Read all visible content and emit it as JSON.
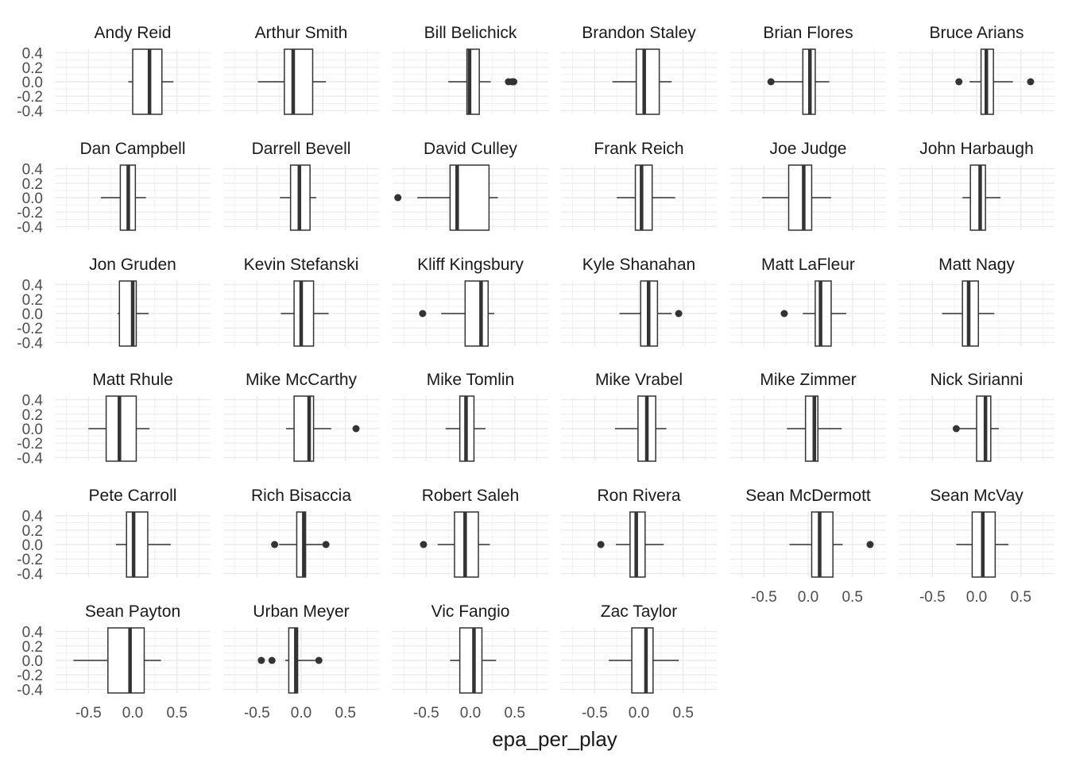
{
  "chart_data": {
    "type": "boxplot-facets",
    "xlabel": "epa_per_play",
    "ylabel": "",
    "xlim": [
      -0.88,
      0.88
    ],
    "ylim": [
      -0.45,
      0.45
    ],
    "x_ticks": [
      -0.5,
      0.0,
      0.5
    ],
    "x_tick_labels": [
      "-0.5",
      "0.0",
      "0.5"
    ],
    "y_ticks": [
      0.4,
      0.2,
      0.0,
      -0.2,
      -0.4
    ],
    "y_tick_labels": [
      "0.4",
      "0.2",
      "0.0",
      "-0.2",
      "-0.4"
    ],
    "columns": 6,
    "grid": true,
    "panels": [
      {
        "coach": "Andy Reid",
        "whisker_low": -0.05,
        "q1": 0.0,
        "median": 0.19,
        "q3": 0.33,
        "whisker_high": 0.46,
        "outliers": []
      },
      {
        "coach": "Arthur Smith",
        "whisker_low": -0.49,
        "q1": -0.19,
        "median": -0.09,
        "q3": 0.13,
        "whisker_high": 0.28,
        "outliers": []
      },
      {
        "coach": "Bill Belichick",
        "whisker_low": -0.25,
        "q1": -0.04,
        "median": -0.01,
        "q3": 0.1,
        "whisker_high": 0.23,
        "outliers": [
          0.43,
          0.47,
          0.49
        ]
      },
      {
        "coach": "Brandon Staley",
        "whisker_low": -0.3,
        "q1": -0.03,
        "median": 0.06,
        "q3": 0.23,
        "whisker_high": 0.37,
        "outliers": []
      },
      {
        "coach": "Brian Flores",
        "whisker_low": -0.39,
        "q1": -0.06,
        "median": 0.02,
        "q3": 0.08,
        "whisker_high": 0.24,
        "outliers": [
          -0.42
        ]
      },
      {
        "coach": "Bruce Arians",
        "whisker_low": -0.08,
        "q1": 0.05,
        "median": 0.11,
        "q3": 0.19,
        "whisker_high": 0.41,
        "outliers": [
          -0.2,
          0.61
        ]
      },
      {
        "coach": "Dan Campbell",
        "whisker_low": -0.36,
        "q1": -0.14,
        "median": -0.05,
        "q3": 0.03,
        "whisker_high": 0.15,
        "outliers": []
      },
      {
        "coach": "Darrell Bevell",
        "whisker_low": -0.24,
        "q1": -0.12,
        "median": -0.02,
        "q3": 0.1,
        "whisker_high": 0.17,
        "outliers": []
      },
      {
        "coach": "David Culley",
        "whisker_low": -0.6,
        "q1": -0.23,
        "median": -0.15,
        "q3": 0.21,
        "whisker_high": 0.31,
        "outliers": [
          -0.82
        ]
      },
      {
        "coach": "Frank Reich",
        "whisker_low": -0.25,
        "q1": -0.04,
        "median": 0.03,
        "q3": 0.15,
        "whisker_high": 0.41,
        "outliers": []
      },
      {
        "coach": "Joe Judge",
        "whisker_low": -0.52,
        "q1": -0.22,
        "median": -0.05,
        "q3": 0.04,
        "whisker_high": 0.26,
        "outliers": []
      },
      {
        "coach": "John Harbaugh",
        "whisker_low": -0.16,
        "q1": -0.07,
        "median": 0.04,
        "q3": 0.1,
        "whisker_high": 0.27,
        "outliers": []
      },
      {
        "coach": "Jon Gruden",
        "whisker_low": -0.17,
        "q1": -0.15,
        "median": 0.0,
        "q3": 0.04,
        "whisker_high": 0.18,
        "outliers": []
      },
      {
        "coach": "Kevin Stefanski",
        "whisker_low": -0.23,
        "q1": -0.08,
        "median": 0.0,
        "q3": 0.14,
        "whisker_high": 0.31,
        "outliers": []
      },
      {
        "coach": "Kliff Kingsbury",
        "whisker_low": -0.33,
        "q1": -0.06,
        "median": 0.12,
        "q3": 0.2,
        "whisker_high": 0.27,
        "outliers": [
          -0.54
        ]
      },
      {
        "coach": "Kyle Shanahan",
        "whisker_low": -0.22,
        "q1": 0.02,
        "median": 0.11,
        "q3": 0.21,
        "whisker_high": 0.37,
        "outliers": [
          0.45
        ]
      },
      {
        "coach": "Matt LaFleur",
        "whisker_low": -0.06,
        "q1": 0.08,
        "median": 0.14,
        "q3": 0.26,
        "whisker_high": 0.43,
        "outliers": [
          -0.27
        ]
      },
      {
        "coach": "Matt Nagy",
        "whisker_low": -0.39,
        "q1": -0.16,
        "median": -0.09,
        "q3": 0.02,
        "whisker_high": 0.2,
        "outliers": []
      },
      {
        "coach": "Matt Rhule",
        "whisker_low": -0.5,
        "q1": -0.3,
        "median": -0.15,
        "q3": 0.04,
        "whisker_high": 0.19,
        "outliers": []
      },
      {
        "coach": "Mike McCarthy",
        "whisker_low": -0.17,
        "q1": -0.08,
        "median": 0.09,
        "q3": 0.14,
        "whisker_high": 0.34,
        "outliers": [
          0.62
        ]
      },
      {
        "coach": "Mike Tomlin",
        "whisker_low": -0.28,
        "q1": -0.12,
        "median": -0.05,
        "q3": 0.04,
        "whisker_high": 0.17,
        "outliers": []
      },
      {
        "coach": "Mike Vrabel",
        "whisker_low": -0.27,
        "q1": -0.01,
        "median": 0.09,
        "q3": 0.19,
        "whisker_high": 0.31,
        "outliers": []
      },
      {
        "coach": "Mike Zimmer",
        "whisker_low": -0.24,
        "q1": -0.03,
        "median": 0.07,
        "q3": 0.11,
        "whisker_high": 0.38,
        "outliers": []
      },
      {
        "coach": "Nick Sirianni",
        "whisker_low": -0.23,
        "q1": 0.0,
        "median": 0.1,
        "q3": 0.16,
        "whisker_high": 0.25,
        "outliers": [
          -0.23
        ]
      },
      {
        "coach": "Pete Carroll",
        "whisker_low": -0.19,
        "q1": -0.07,
        "median": 0.01,
        "q3": 0.17,
        "whisker_high": 0.43,
        "outliers": []
      },
      {
        "coach": "Rich Bisaccia",
        "whisker_low": -0.25,
        "q1": -0.05,
        "median": 0.03,
        "q3": 0.05,
        "whisker_high": 0.28,
        "outliers": [
          -0.3,
          0.28
        ]
      },
      {
        "coach": "Robert Saleh",
        "whisker_low": -0.37,
        "q1": -0.18,
        "median": -0.06,
        "q3": 0.09,
        "whisker_high": 0.22,
        "outliers": [
          -0.53
        ]
      },
      {
        "coach": "Ron Rivera",
        "whisker_low": -0.26,
        "q1": -0.1,
        "median": -0.03,
        "q3": 0.07,
        "whisker_high": 0.28,
        "outliers": [
          -0.43
        ]
      },
      {
        "coach": "Sean McDermott",
        "whisker_low": -0.21,
        "q1": 0.04,
        "median": 0.13,
        "q3": 0.28,
        "whisker_high": 0.39,
        "outliers": [
          0.7
        ]
      },
      {
        "coach": "Sean McVay",
        "whisker_low": -0.23,
        "q1": -0.05,
        "median": 0.07,
        "q3": 0.21,
        "whisker_high": 0.36,
        "outliers": []
      },
      {
        "coach": "Sean Payton",
        "whisker_low": -0.67,
        "q1": -0.28,
        "median": -0.03,
        "q3": 0.13,
        "whisker_high": 0.32,
        "outliers": []
      },
      {
        "coach": "Urban Meyer",
        "whisker_low": -0.18,
        "q1": -0.14,
        "median": -0.06,
        "q3": -0.04,
        "whisker_high": 0.16,
        "outliers": [
          -0.45,
          -0.33,
          0.2
        ]
      },
      {
        "coach": "Vic Fangio",
        "whisker_low": -0.23,
        "q1": -0.12,
        "median": 0.04,
        "q3": 0.13,
        "whisker_high": 0.29,
        "outliers": []
      },
      {
        "coach": "Zac Taylor",
        "whisker_low": -0.34,
        "q1": -0.08,
        "median": 0.08,
        "q3": 0.16,
        "whisker_high": 0.45,
        "outliers": []
      }
    ]
  },
  "colors": {
    "box_stroke": "#333333",
    "box_fill": "#ffffff",
    "grid": "#ebebeb",
    "text": "#1a1a1a",
    "tick_text": "#4d4d4d",
    "outlier": "#333333"
  }
}
